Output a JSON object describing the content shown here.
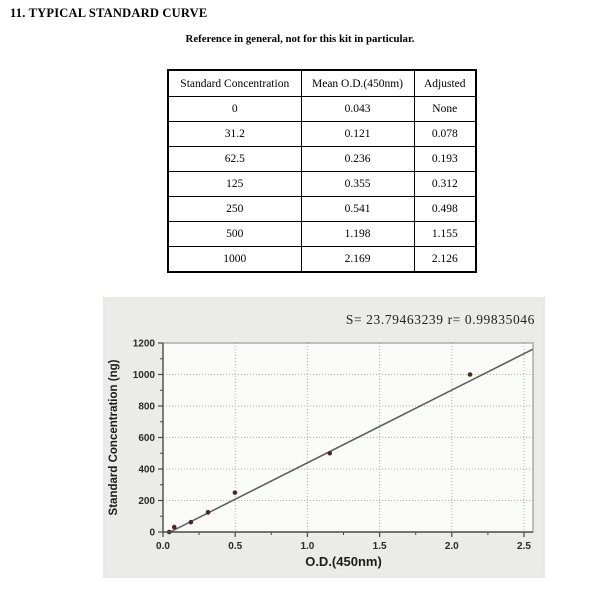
{
  "page": {
    "heading": "11. TYPICAL STANDARD CURVE",
    "subtitle": "Reference in general, not for this kit in particular."
  },
  "table": {
    "headers": [
      "Standard Concentration",
      "Mean O.D.(450nm)",
      "Adjusted"
    ],
    "rows": [
      [
        "0",
        "0.043",
        "None"
      ],
      [
        "31.2",
        "0.121",
        "0.078"
      ],
      [
        "62.5",
        "0.236",
        "0.193"
      ],
      [
        "125",
        "0.355",
        "0.312"
      ],
      [
        "250",
        "0.541",
        "0.498"
      ],
      [
        "500",
        "1.198",
        "1.155"
      ],
      [
        "1000",
        "2.169",
        "2.126"
      ]
    ]
  },
  "chart_data": {
    "type": "scatter",
    "annotation": "S= 23.79463239  r= 0.99835046",
    "s_value": "23.79463239",
    "r_value": "0.99835046",
    "xlabel": "O.D.(450nm)",
    "ylabel": "Standard Concentration (ng)",
    "xlim": [
      0,
      2.56
    ],
    "ylim": [
      0,
      1200
    ],
    "x_ticks": [
      0.5,
      1.0,
      1.5,
      2.0,
      2.5
    ],
    "x_tick_labels": [
      "0.0",
      "0.5",
      "1.0",
      "1.5",
      "2.0",
      "2.5"
    ],
    "x_tick_values": [
      0,
      0.5,
      1.0,
      1.5,
      2.0,
      2.5
    ],
    "y_tick_labels": [
      "0",
      "200",
      "400",
      "600",
      "800",
      "1000",
      "1200"
    ],
    "y_tick_values": [
      0,
      200,
      400,
      600,
      800,
      1000,
      1200
    ],
    "x_minor_step": 0.25,
    "y_minor_step": 100,
    "grid": true,
    "legend": "none",
    "points": [
      [
        0.043,
        0
      ],
      [
        0.078,
        31.2
      ],
      [
        0.193,
        62.5
      ],
      [
        0.312,
        125
      ],
      [
        0.498,
        250
      ],
      [
        1.155,
        500
      ],
      [
        2.126,
        1000
      ]
    ],
    "fit_line": [
      [
        0.05,
        0
      ],
      [
        2.56,
        1160
      ]
    ],
    "colors": {
      "container_bg": "#ebebe8",
      "plot_bg": "#fafaf8",
      "axis": "#4a4a45",
      "box": "#8a8a84",
      "grid": "#a9b6a9",
      "line": "#565f56",
      "point": "#4a2828",
      "text": "#1a1a1a"
    }
  }
}
